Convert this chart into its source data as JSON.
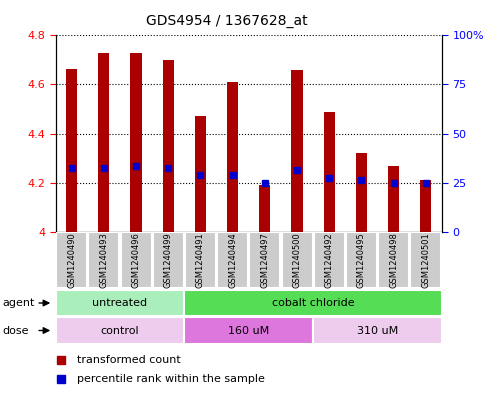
{
  "title": "GDS4954 / 1367628_at",
  "samples": [
    "GSM1240490",
    "GSM1240493",
    "GSM1240496",
    "GSM1240499",
    "GSM1240491",
    "GSM1240494",
    "GSM1240497",
    "GSM1240500",
    "GSM1240492",
    "GSM1240495",
    "GSM1240498",
    "GSM1240501"
  ],
  "bar_tops": [
    4.665,
    4.73,
    4.73,
    4.7,
    4.47,
    4.61,
    4.19,
    4.66,
    4.49,
    4.32,
    4.27,
    4.21
  ],
  "bar_bottoms": [
    4.0,
    4.0,
    4.0,
    4.0,
    4.0,
    4.0,
    4.0,
    4.0,
    4.0,
    4.0,
    4.0,
    4.0
  ],
  "blue_markers": [
    4.26,
    4.26,
    4.27,
    4.26,
    4.23,
    4.23,
    4.2,
    4.25,
    4.22,
    4.21,
    4.2,
    4.2
  ],
  "bar_color": "#AA0000",
  "blue_color": "#0000CC",
  "ylim": [
    4.0,
    4.8
  ],
  "yticks_left": [
    4.0,
    4.2,
    4.4,
    4.6,
    4.8
  ],
  "ytick_labels_left": [
    "4",
    "4.2",
    "4.4",
    "4.6",
    "4.8"
  ],
  "ytick_vals_right": [
    4.0,
    4.2,
    4.4,
    4.6,
    4.8
  ],
  "ytick_labels_right": [
    "0",
    "25",
    "50",
    "75",
    "100%"
  ],
  "agent_groups": [
    {
      "label": "untreated",
      "start": 0,
      "end": 4,
      "color": "#AAEEBB"
    },
    {
      "label": "cobalt chloride",
      "start": 4,
      "end": 12,
      "color": "#55DD55"
    }
  ],
  "dose_groups": [
    {
      "label": "control",
      "start": 0,
      "end": 4,
      "color": "#EECCEE"
    },
    {
      "label": "160 uM",
      "start": 4,
      "end": 8,
      "color": "#DD77DD"
    },
    {
      "label": "310 uM",
      "start": 8,
      "end": 12,
      "color": "#EECCEE"
    }
  ],
  "legend_red": "transformed count",
  "legend_blue": "percentile rank within the sample",
  "bar_width": 0.35,
  "label_bg_color": "#CCCCCC",
  "plot_facecolor": "white"
}
